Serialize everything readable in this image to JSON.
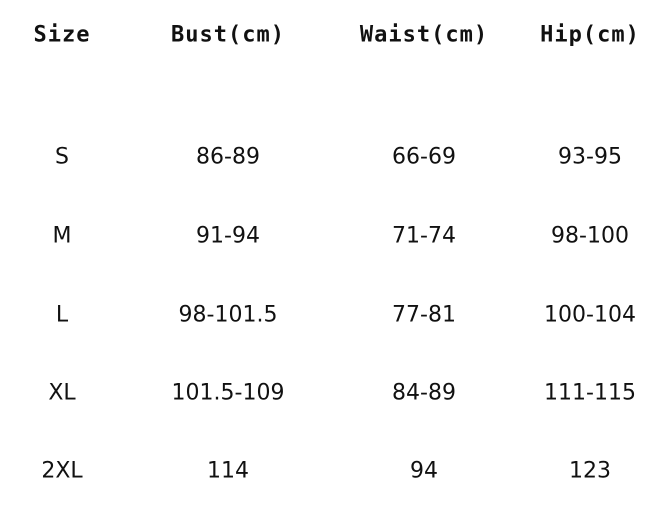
{
  "table": {
    "headers": [
      "Size",
      "Bust(cm)",
      "Waist(cm)",
      "Hip(cm)"
    ],
    "rows": [
      [
        "S",
        "86-89",
        "66-69",
        "93-95"
      ],
      [
        "M",
        "91-94",
        "71-74",
        "98-100"
      ],
      [
        "L",
        "98-101.5",
        "77-81",
        "100-104"
      ],
      [
        "XL",
        "101.5-109",
        "84-89",
        "111-115"
      ],
      [
        "2XL",
        "114",
        "94",
        "123"
      ]
    ]
  }
}
